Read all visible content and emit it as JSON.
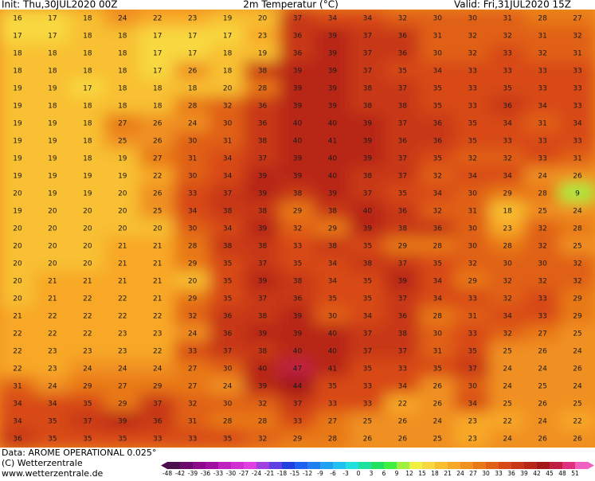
{
  "header": {
    "init": "Init: Thu,30JUL2020 00Z",
    "title": "2m Temperatur (°C)",
    "valid": "Valid: Fri,31JUL2020 15Z"
  },
  "map": {
    "rows": [
      [
        16,
        17,
        18,
        24,
        22,
        23,
        19,
        20,
        37,
        34,
        34,
        32,
        30,
        30,
        31,
        28,
        27
      ],
      [
        17,
        17,
        18,
        18,
        17,
        17,
        17,
        23,
        36,
        39,
        37,
        36,
        31,
        32,
        32,
        31,
        32
      ],
      [
        18,
        18,
        18,
        18,
        17,
        17,
        18,
        19,
        36,
        39,
        37,
        36,
        30,
        32,
        33,
        32,
        31
      ],
      [
        18,
        18,
        18,
        18,
        17,
        26,
        18,
        38,
        39,
        39,
        37,
        35,
        34,
        33,
        33,
        33,
        33
      ],
      [
        19,
        19,
        17,
        18,
        18,
        18,
        20,
        28,
        39,
        39,
        38,
        37,
        35,
        33,
        35,
        33,
        33
      ],
      [
        19,
        18,
        18,
        18,
        18,
        28,
        32,
        36,
        39,
        39,
        38,
        38,
        35,
        33,
        36,
        34,
        33
      ],
      [
        19,
        19,
        18,
        27,
        26,
        24,
        30,
        36,
        40,
        40,
        39,
        37,
        36,
        35,
        34,
        31,
        34
      ],
      [
        19,
        19,
        18,
        25,
        26,
        30,
        31,
        38,
        40,
        41,
        39,
        36,
        36,
        35,
        33,
        33,
        33
      ],
      [
        19,
        19,
        18,
        19,
        27,
        31,
        34,
        37,
        39,
        40,
        39,
        37,
        35,
        32,
        32,
        33,
        31
      ],
      [
        19,
        19,
        19,
        19,
        22,
        30,
        34,
        39,
        39,
        40,
        38,
        37,
        32,
        34,
        34,
        24,
        26
      ],
      [
        20,
        19,
        19,
        20,
        26,
        33,
        37,
        39,
        38,
        39,
        37,
        35,
        34,
        30,
        29,
        28,
        9
      ],
      [
        19,
        20,
        20,
        20,
        25,
        34,
        38,
        38,
        29,
        38,
        40,
        36,
        32,
        31,
        18,
        25,
        24
      ],
      [
        20,
        20,
        20,
        20,
        20,
        30,
        34,
        39,
        32,
        29,
        39,
        38,
        36,
        30,
        23,
        32,
        28
      ],
      [
        20,
        20,
        20,
        21,
        21,
        28,
        38,
        38,
        33,
        38,
        35,
        29,
        28,
        30,
        28,
        32,
        25
      ],
      [
        20,
        20,
        20,
        21,
        21,
        29,
        35,
        37,
        35,
        34,
        38,
        37,
        35,
        32,
        30,
        30,
        32
      ],
      [
        20,
        21,
        21,
        21,
        21,
        20,
        35,
        39,
        38,
        34,
        35,
        39,
        34,
        29,
        32,
        32,
        32
      ],
      [
        20,
        21,
        22,
        22,
        21,
        29,
        35,
        37,
        36,
        35,
        35,
        37,
        34,
        33,
        32,
        33,
        29
      ],
      [
        21,
        22,
        22,
        22,
        22,
        32,
        36,
        38,
        39,
        30,
        34,
        36,
        28,
        31,
        34,
        33,
        29
      ],
      [
        22,
        22,
        22,
        23,
        23,
        24,
        36,
        39,
        39,
        40,
        37,
        38,
        30,
        33,
        32,
        27,
        25
      ],
      [
        22,
        23,
        23,
        23,
        22,
        33,
        37,
        38,
        40,
        40,
        37,
        37,
        31,
        35,
        25,
        26,
        24
      ],
      [
        22,
        23,
        24,
        24,
        24,
        27,
        30,
        40,
        47,
        41,
        35,
        33,
        35,
        37,
        24,
        24,
        26
      ],
      [
        31,
        24,
        29,
        27,
        29,
        27,
        24,
        39,
        44,
        35,
        33,
        34,
        26,
        30,
        24,
        25,
        24
      ],
      [
        34,
        34,
        35,
        29,
        37,
        32,
        30,
        32,
        37,
        33,
        33,
        22,
        26,
        34,
        25,
        26,
        25
      ],
      [
        34,
        35,
        37,
        39,
        36,
        31,
        28,
        28,
        33,
        27,
        25,
        26,
        24,
        23,
        22,
        24,
        22
      ],
      [
        36,
        35,
        35,
        35,
        33,
        33,
        35,
        32,
        29,
        28,
        26,
        26,
        25,
        23,
        24,
        26,
        26
      ]
    ]
  },
  "colorbar": {
    "labels": [
      -48,
      -42,
      -39,
      -36,
      -33,
      -30,
      -27,
      -24,
      -21,
      -18,
      -15,
      -12,
      -9,
      -6,
      -3,
      0,
      3,
      6,
      9,
      12,
      15,
      18,
      21,
      24,
      27,
      30,
      33,
      36,
      39,
      42,
      45,
      48,
      51
    ],
    "colors": [
      "#4b0f4b",
      "#6a0a6a",
      "#8a0a8a",
      "#a010a0",
      "#c020c0",
      "#d030d0",
      "#e040e0",
      "#a040e0",
      "#6040e0",
      "#2040e0",
      "#2060f0",
      "#2080f0",
      "#20a0f0",
      "#20c0f0",
      "#20e0e0",
      "#20e0a0",
      "#20e060",
      "#40f040",
      "#a0f040",
      "#f0f040",
      "#f8d840",
      "#f8c030",
      "#f8a828",
      "#f09020",
      "#e87818",
      "#e06018",
      "#d84818",
      "#c83818",
      "#b82818",
      "#a01818",
      "#c02040",
      "#e03080",
      "#f060c0"
    ]
  },
  "footer": {
    "data": "Data: AROME OPERATIONAL 0.025°",
    "copyright": "(C) Wetterzentrale",
    "url": "www.wetterzentrale.de"
  }
}
